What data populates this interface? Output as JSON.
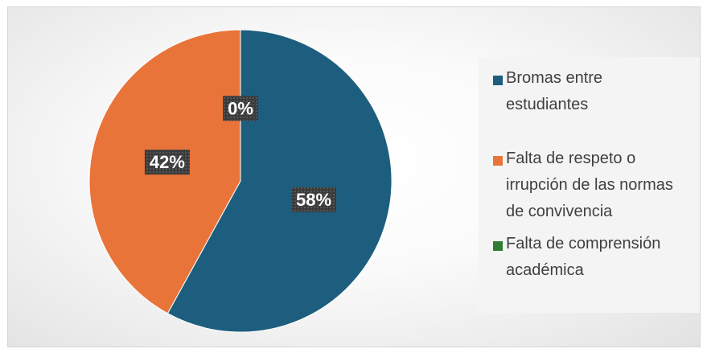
{
  "chart_data": {
    "type": "pie",
    "categories": [
      "Bromas entre estudiantes",
      "Falta de respeto o irrupción de las normas de convivencia",
      "Falta de comprensión académica"
    ],
    "values": [
      58,
      42,
      0
    ],
    "labels": [
      "58%",
      "42%",
      "0%"
    ],
    "colors": [
      "#1d5e7e",
      "#e9743a",
      "#2e7d32"
    ],
    "legend_position": "right",
    "legend_lines": [
      [
        "Bromas entre",
        "estudiantes"
      ],
      [
        "Falta de respeto o",
        "irrupción de las normas",
        "de convivencia"
      ],
      [
        "Falta de comprensión",
        "académica"
      ]
    ]
  }
}
